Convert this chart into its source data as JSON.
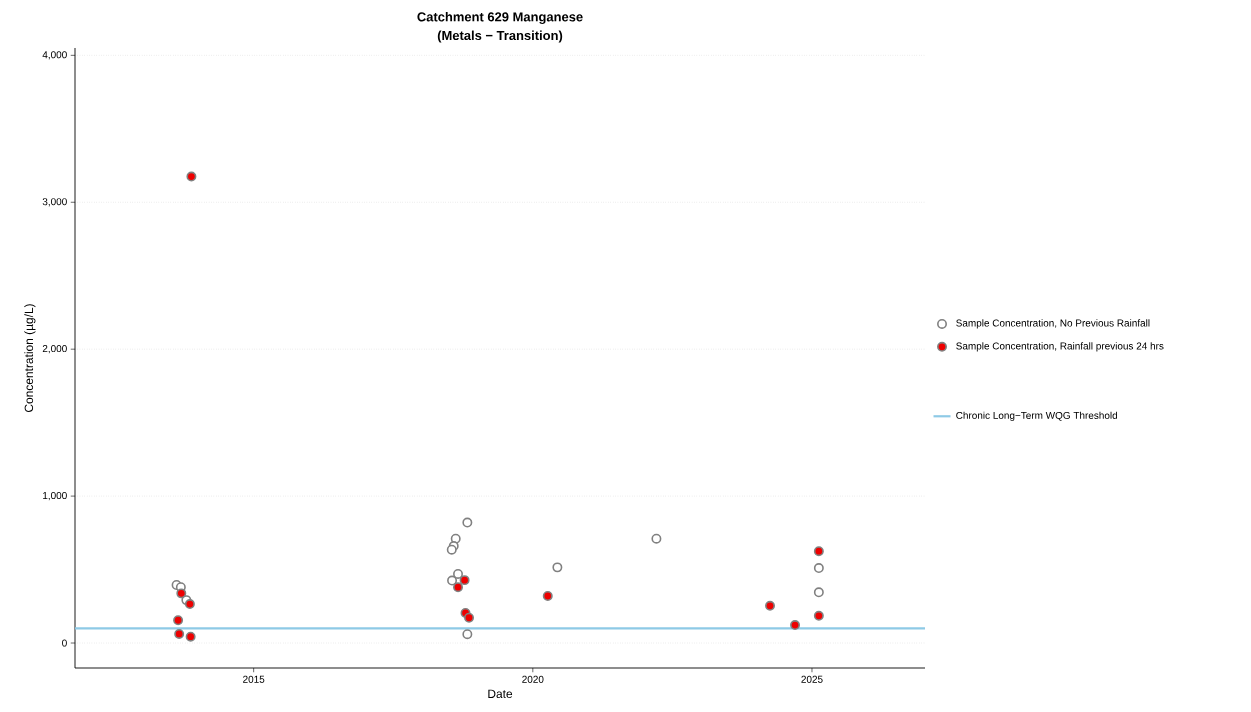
{
  "chart_data": {
    "type": "scatter",
    "title": "Catchment 629 Manganese",
    "subtitle": "(Metals − Transition)",
    "xlabel": "Date",
    "ylabel": "Concentration (µg/L)",
    "xlim": [
      "2011-10-20",
      "2027-01-10"
    ],
    "ylim": [
      -170,
      4050
    ],
    "xticks": [
      {
        "value": "2015-01-01",
        "label": "2015"
      },
      {
        "value": "2020-01-01",
        "label": "2020"
      },
      {
        "value": "2025-01-01",
        "label": "2025"
      }
    ],
    "yticks": [
      0,
      {
        "value": 1000,
        "label": "1,000"
      },
      {
        "value": 2000,
        "label": "2,000"
      },
      {
        "value": 3000,
        "label": "3,000"
      },
      {
        "value": 4000,
        "label": "4,000"
      }
    ],
    "grid": "y",
    "legend": "right",
    "marker": "circle",
    "series": [
      {
        "name": "Sample Concentration, No Previous Rainfall",
        "color": "#808080",
        "x": [
          "2013-08-15",
          "2013-09-12",
          "2013-10-18",
          "2018-10-30",
          "2018-08-15",
          "2018-08-02",
          "2018-07-20",
          "2018-08-30",
          "2018-07-22",
          "2018-10-30",
          "2020-06-10",
          "2022-03-20",
          "2025-02-15",
          "2025-02-15"
        ],
        "values": [
          395,
          380,
          292,
          820,
          710,
          660,
          635,
          470,
          425,
          60,
          515,
          710,
          510,
          345
        ]
      },
      {
        "name": "Sample Concentration, Rainfall previous 24 hrs",
        "color": "#ee0000",
        "x": [
          "2013-09-15",
          "2013-11-10",
          "2013-08-25",
          "2013-09-01",
          "2013-11-15",
          "2013-11-20",
          "2018-10-12",
          "2018-08-30",
          "2018-10-18",
          "2018-11-10",
          "2020-04-08",
          "2024-04-01",
          "2024-09-12",
          "2025-02-15",
          "2025-02-15"
        ],
        "values": [
          338,
          265,
          155,
          62,
          43,
          3175,
          428,
          380,
          205,
          172,
          320,
          253,
          122,
          625,
          185
        ]
      }
    ],
    "ref_lines": [
      {
        "axis": "y",
        "value": 100,
        "label": "Chronic Long−Term WQG Threshold",
        "color": "#8ecae6",
        "line_style": "solid"
      }
    ]
  }
}
